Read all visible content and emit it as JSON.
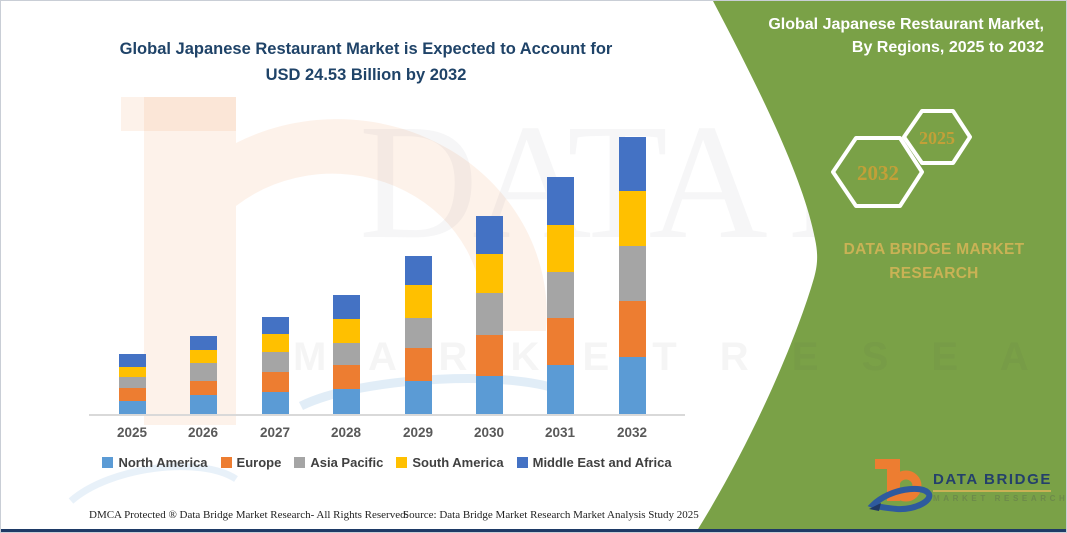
{
  "title": {
    "line1": "Global Japanese Restaurant Market is Expected to Account for",
    "line2": "USD 24.53 Billion by 2032"
  },
  "chart_data": {
    "type": "bar",
    "stacked": true,
    "title": "Global Japanese Restaurant Market is Expected to Account for USD 24.53 Billion by 2032",
    "unit": "USD Billion",
    "categories": [
      "2025",
      "2026",
      "2027",
      "2028",
      "2029",
      "2030",
      "2031",
      "2032"
    ],
    "series": [
      {
        "name": "North America",
        "color": "#5B9BD5",
        "values": [
          1.15,
          1.68,
          1.95,
          2.21,
          2.92,
          3.37,
          4.34,
          5.05
        ]
      },
      {
        "name": "Europe",
        "color": "#ED7D31",
        "values": [
          1.15,
          1.24,
          1.77,
          2.13,
          2.92,
          3.63,
          4.16,
          4.96
        ]
      },
      {
        "name": "Asia Pacific",
        "color": "#A5A5A5",
        "values": [
          0.97,
          1.59,
          1.77,
          1.95,
          2.66,
          3.72,
          4.07,
          4.87
        ]
      },
      {
        "name": "South America",
        "color": "#FFC000",
        "values": [
          0.89,
          1.15,
          1.59,
          2.13,
          2.92,
          3.45,
          4.16,
          4.87
        ]
      },
      {
        "name": "Middle East and Africa",
        "color": "#4472C4",
        "values": [
          1.15,
          1.24,
          1.51,
          2.13,
          2.57,
          3.37,
          4.25,
          4.78
        ]
      }
    ],
    "totals": [
      5.31,
      6.9,
      8.59,
      10.55,
      13.99,
      17.54,
      20.98,
      24.53
    ],
    "ylim": [
      0,
      24.53
    ],
    "grid": false,
    "value_labels": false,
    "legend_position": "bottom"
  },
  "sidebar": {
    "header": {
      "line1": "Global Japanese Restaurant Market,",
      "line2": "By Regions, 2025 to 2032"
    },
    "hexagons": [
      {
        "label": "2032"
      },
      {
        "label": "2025"
      }
    ],
    "brand": {
      "line1": "DATA BRIDGE MARKET",
      "line2": "RESEARCH"
    },
    "logo": {
      "title": "DATA BRIDGE",
      "subtitle": "MARKET RESEARCH"
    },
    "panel_color": "#7AA147",
    "accent_gold": "#C9B255"
  },
  "watermarks": {
    "big_text": "DATA BRID",
    "row_text": "M A R K E T  R E S E A R C H"
  },
  "footer": {
    "dmca": "DMCA Protected ® Data Bridge Market Research-  All Rights Reserved.",
    "source": "Source: Data Bridge Market Research  Market Analysis Study 2025"
  }
}
